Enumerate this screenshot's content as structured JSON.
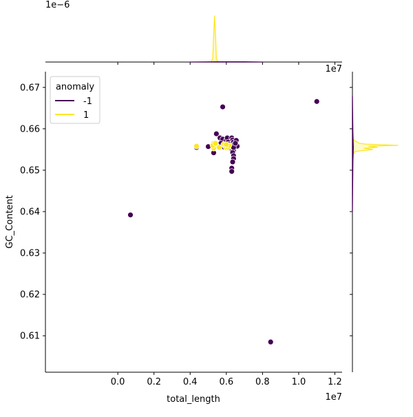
{
  "chart_data": {
    "type": "scatter",
    "title": "",
    "xlabel": "total_length",
    "ylabel": "GC_Content",
    "x_scale_text": "1e7",
    "x_scale": 10000000,
    "top_marginal_scale_text": "1e−6",
    "xlim": [
      -0.4,
      1.24
    ],
    "ylim": [
      0.6012,
      0.6738
    ],
    "x_ticks": [
      0.0,
      0.2,
      0.4,
      0.6,
      0.8,
      1.0,
      1.2
    ],
    "x_tick_labels": [
      "0.0",
      "0.2",
      "0.4",
      "0.6",
      "0.8",
      "1.0",
      "1.2"
    ],
    "y_ticks": [
      0.61,
      0.62,
      0.63,
      0.64,
      0.65,
      0.66,
      0.67
    ],
    "y_tick_labels": [
      "0.61",
      "0.62",
      "0.63",
      "0.64",
      "0.65",
      "0.66",
      "0.67"
    ],
    "grid": false,
    "legend": {
      "title": "anomaly",
      "placement": "top-left",
      "entries": [
        {
          "label": "-1",
          "color": "#440154"
        },
        {
          "label": "1",
          "color": "#fde725"
        }
      ]
    },
    "series": [
      {
        "name": "-1",
        "color": "#440154",
        "points": [
          [
            0.07,
            0.6392
          ],
          [
            0.845,
            0.6085
          ],
          [
            1.1,
            0.6666
          ],
          [
            0.58,
            0.6653
          ],
          [
            0.435,
            0.6555
          ],
          [
            0.5,
            0.6557
          ],
          [
            0.53,
            0.6542
          ],
          [
            0.545,
            0.6588
          ],
          [
            0.565,
            0.6578
          ],
          [
            0.58,
            0.6575
          ],
          [
            0.59,
            0.6555
          ],
          [
            0.6,
            0.6573
          ],
          [
            0.605,
            0.6578
          ],
          [
            0.61,
            0.6568
          ],
          [
            0.615,
            0.6563
          ],
          [
            0.62,
            0.6558
          ],
          [
            0.625,
            0.6553
          ],
          [
            0.63,
            0.6578
          ],
          [
            0.635,
            0.6573
          ],
          [
            0.64,
            0.6568
          ],
          [
            0.645,
            0.6563
          ],
          [
            0.65,
            0.6558
          ],
          [
            0.655,
            0.6572
          ],
          [
            0.66,
            0.6558
          ],
          [
            0.64,
            0.6548
          ],
          [
            0.635,
            0.6543
          ],
          [
            0.64,
            0.6535
          ],
          [
            0.64,
            0.6528
          ],
          [
            0.635,
            0.652
          ],
          [
            0.63,
            0.6505
          ],
          [
            0.63,
            0.6497
          ],
          [
            0.64,
            0.6555
          ],
          [
            0.65,
            0.6565
          ],
          [
            0.6,
            0.6553
          ],
          [
            0.56,
            0.6558
          ],
          [
            0.57,
            0.6565
          ]
        ]
      },
      {
        "name": "1",
        "color": "#fde725",
        "points": [
          [
            0.53,
            0.6565
          ],
          [
            0.535,
            0.6555
          ],
          [
            0.54,
            0.6558
          ],
          [
            0.545,
            0.656
          ],
          [
            0.55,
            0.6557
          ],
          [
            0.56,
            0.6555
          ],
          [
            0.585,
            0.6562
          ],
          [
            0.595,
            0.6558
          ],
          [
            0.6,
            0.6554
          ],
          [
            0.61,
            0.6555
          ],
          [
            0.615,
            0.656
          ],
          [
            0.435,
            0.6558
          ],
          [
            0.53,
            0.6553
          ],
          [
            0.525,
            0.656
          ],
          [
            0.54,
            0.6565
          ],
          [
            0.6,
            0.6562
          ]
        ]
      }
    ],
    "marginal_top": {
      "series": [
        {
          "name": "1",
          "color": "#fde725",
          "x": [
            0.515,
            0.525,
            0.53,
            0.535,
            0.54,
            0.545,
            0.555
          ],
          "density": [
            0,
            0.3,
            2.6,
            4.3,
            2.6,
            0.3,
            0
          ]
        },
        {
          "name": "-1",
          "color": "#440154",
          "x": [
            0.4,
            0.55,
            0.7,
            0.8
          ],
          "density": [
            0,
            0.02,
            0.02,
            0
          ]
        }
      ],
      "ylim": [
        0,
        4.6
      ]
    },
    "marginal_right": {
      "series": [
        {
          "name": "1",
          "color": "#fde725",
          "y": [
            0.6535,
            0.6545,
            0.655,
            0.6553,
            0.6555,
            0.6558,
            0.656,
            0.6563,
            0.6565,
            0.6575
          ],
          "density": [
            0,
            0.05,
            0.45,
            0.25,
            0.55,
            0.35,
            1.0,
            0.3,
            0.15,
            0
          ]
        },
        {
          "name": "-1",
          "color": "#440154",
          "y": [
            0.64,
            0.652,
            0.6555,
            0.659,
            0.668
          ],
          "density": [
            0,
            0.01,
            0.02,
            0.01,
            0
          ]
        }
      ],
      "xlim": [
        0,
        1.05
      ]
    }
  }
}
